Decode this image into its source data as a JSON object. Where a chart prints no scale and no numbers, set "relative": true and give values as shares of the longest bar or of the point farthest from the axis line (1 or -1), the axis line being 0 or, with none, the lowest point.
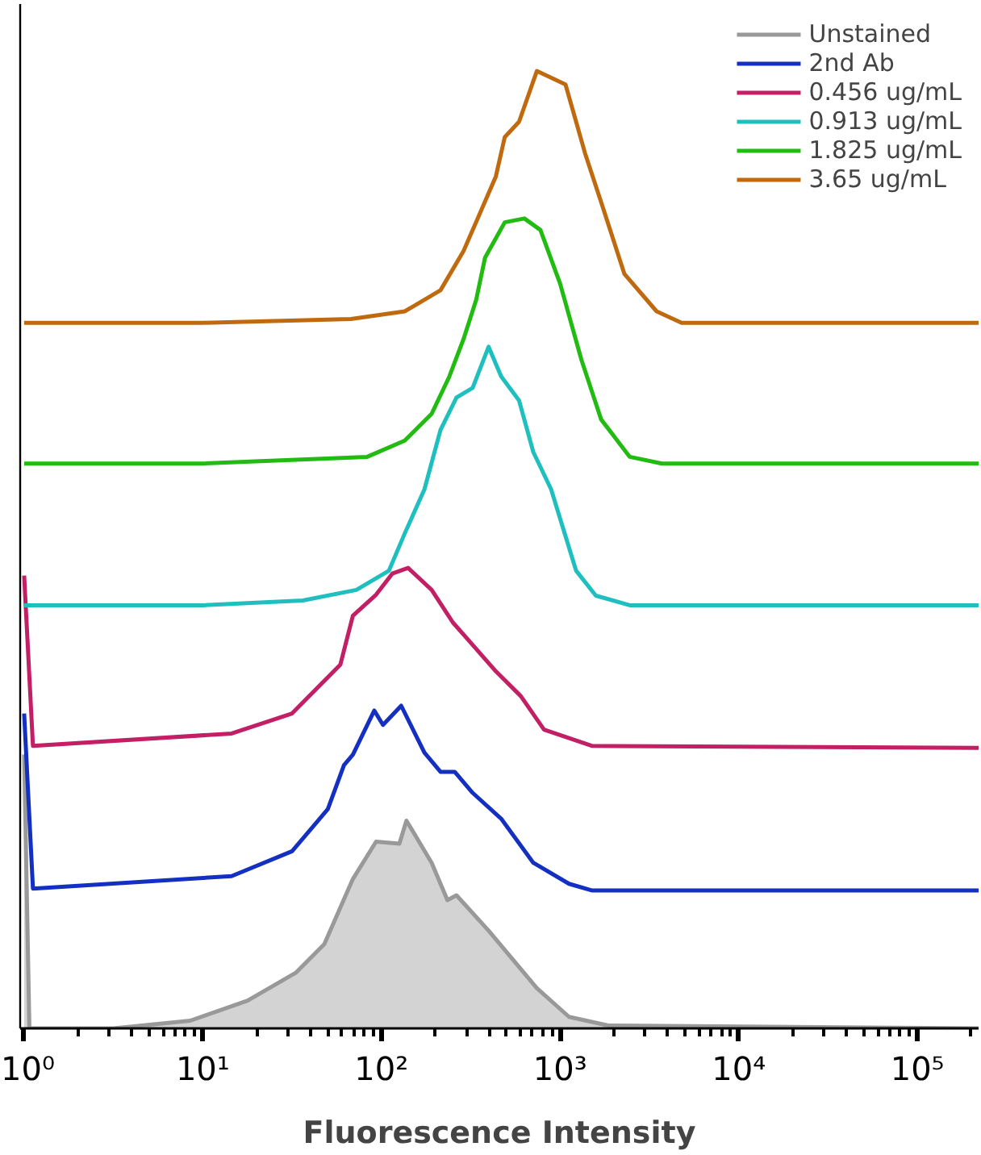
{
  "chart_data": {
    "type": "line",
    "relative": true,
    "log": "x",
    "xlabel": "Fluorescence Intensity",
    "xlim": [
      0.95,
      220000
    ],
    "xticks": [
      {
        "value": 1,
        "label": "10⁰"
      },
      {
        "value": 10,
        "label": "10¹"
      },
      {
        "value": 100,
        "label": "10²"
      },
      {
        "value": 1000,
        "label": "10³"
      },
      {
        "value": 10000,
        "label": "10⁴"
      },
      {
        "value": 100000,
        "label": "10⁵"
      }
    ],
    "legend": "top right",
    "grid": false,
    "series": [
      {
        "name": "Unstained",
        "type": "area",
        "color": "#999999",
        "x": [
          1,
          1.07,
          3.16,
          8.5,
          17.8,
          33.1,
          47.9,
          69.2,
          93.3,
          126,
          138,
          191,
          234,
          263,
          398,
          741,
          1122,
          1862,
          220000
        ],
        "values": [
          0.286,
          0.0,
          0.0,
          0.008,
          0.029,
          0.058,
          0.088,
          0.156,
          0.195,
          0.193,
          0.217,
          0.173,
          0.134,
          0.139,
          0.102,
          0.042,
          0.012,
          0.003,
          0.0
        ]
      },
      {
        "name": "2nd Ab",
        "color": "#1430c0",
        "x": [
          1,
          1.12,
          14.5,
          31.6,
          50.1,
          61.7,
          69.2,
          91.2,
          102,
          129,
          174,
          214,
          257,
          324,
          468,
          708,
          1122,
          1514,
          220000
        ],
        "values": [
          0.329,
          0.146,
          0.159,
          0.185,
          0.229,
          0.275,
          0.286,
          0.332,
          0.317,
          0.337,
          0.288,
          0.268,
          0.268,
          0.246,
          0.219,
          0.173,
          0.151,
          0.144,
          0.144
        ]
      },
      {
        "name": "0.456 ug/mL",
        "color": "#c21f65",
        "x": [
          1,
          1.12,
          14.5,
          31.6,
          58.9,
          69.2,
          93.3,
          115,
          141,
          191,
          251,
          309,
          437,
          603,
          813,
          1514,
          220000
        ],
        "values": [
          0.473,
          0.295,
          0.308,
          0.329,
          0.38,
          0.431,
          0.453,
          0.475,
          0.481,
          0.458,
          0.424,
          0.405,
          0.373,
          0.347,
          0.312,
          0.295,
          0.293
        ]
      },
      {
        "name": "0.913 ug/mL",
        "color": "#1fbfbf",
        "x": [
          1,
          10,
          36.3,
          72.4,
          110,
          135,
          174,
          214,
          263,
          324,
          398,
          468,
          589,
          708,
          891,
          1230,
          1585,
          2455,
          220000
        ],
        "values": [
          0.442,
          0.442,
          0.447,
          0.458,
          0.478,
          0.517,
          0.563,
          0.625,
          0.659,
          0.669,
          0.712,
          0.681,
          0.656,
          0.602,
          0.563,
          0.478,
          0.452,
          0.442,
          0.442
        ]
      },
      {
        "name": "1.825 ug/mL",
        "color": "#22bb11",
        "x": [
          1,
          10,
          83.2,
          135,
          191,
          240,
          288,
          339,
          380,
          490,
          631,
          776,
          1000,
          1318,
          1698,
          2455,
          3715,
          220000
        ],
        "values": [
          0.59,
          0.59,
          0.597,
          0.614,
          0.642,
          0.681,
          0.72,
          0.761,
          0.805,
          0.842,
          0.846,
          0.834,
          0.778,
          0.698,
          0.636,
          0.597,
          0.59,
          0.59
        ]
      },
      {
        "name": "3.65 ug/mL",
        "color": "#c06a10",
        "x": [
          1,
          10,
          67.6,
          135,
          214,
          288,
          355,
          437,
          490,
          589,
          741,
          1072,
          1380,
          1698,
          2291,
          3467,
          4786,
          220000
        ],
        "values": [
          0.737,
          0.737,
          0.741,
          0.749,
          0.771,
          0.812,
          0.851,
          0.89,
          0.931,
          0.947,
          1.0,
          0.986,
          0.914,
          0.863,
          0.788,
          0.749,
          0.737,
          0.737
        ]
      }
    ]
  }
}
